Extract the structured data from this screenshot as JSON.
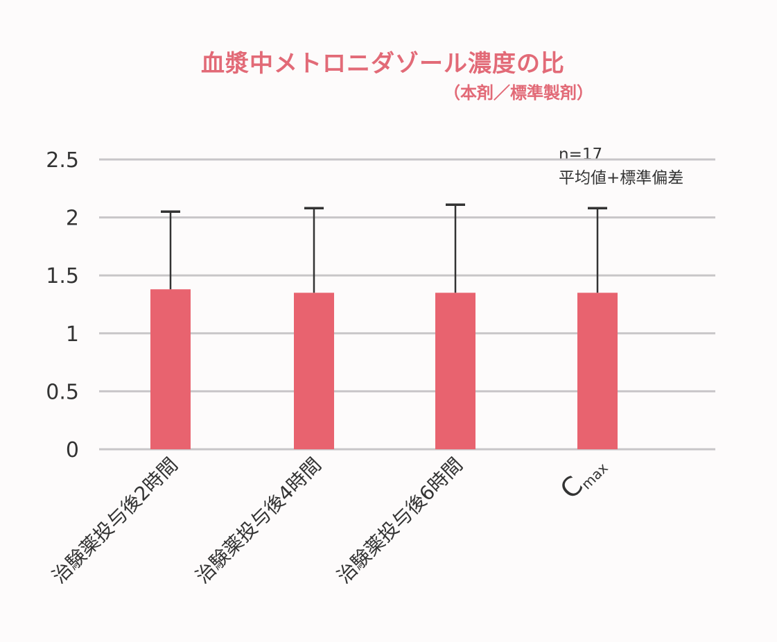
{
  "chart_data": {
    "type": "bar",
    "title": "血漿中メトロニダゾール濃度の比",
    "subtitle": "（本剤／標準製剤）",
    "note": [
      "n=17",
      "平均値+標準偏差"
    ],
    "categories": [
      "治験薬投与後2時間",
      "治験薬投与後4時間",
      "治験薬投与後6時間",
      "Cmax"
    ],
    "category_display": [
      {
        "main": "治験薬投与後2時間",
        "sub": ""
      },
      {
        "main": "治験薬投与後4時間",
        "sub": ""
      },
      {
        "main": "治験薬投与後6時間",
        "sub": ""
      },
      {
        "main": "C",
        "sub": "max"
      }
    ],
    "values": [
      1.38,
      1.35,
      1.35,
      1.35
    ],
    "error_upper": [
      2.05,
      2.08,
      2.11,
      2.08
    ],
    "ylim": [
      0,
      2.5
    ],
    "yticks": [
      "0",
      "0.5",
      "1",
      "1.5",
      "2",
      "2.5"
    ],
    "ytick_values": [
      0,
      0.5,
      1,
      1.5,
      2,
      2.5
    ],
    "xlabel": "",
    "ylabel": "",
    "grid": true,
    "bar_color": "#e8636f",
    "grid_color": "#c8c6c8",
    "title_color": "#e26a77"
  }
}
